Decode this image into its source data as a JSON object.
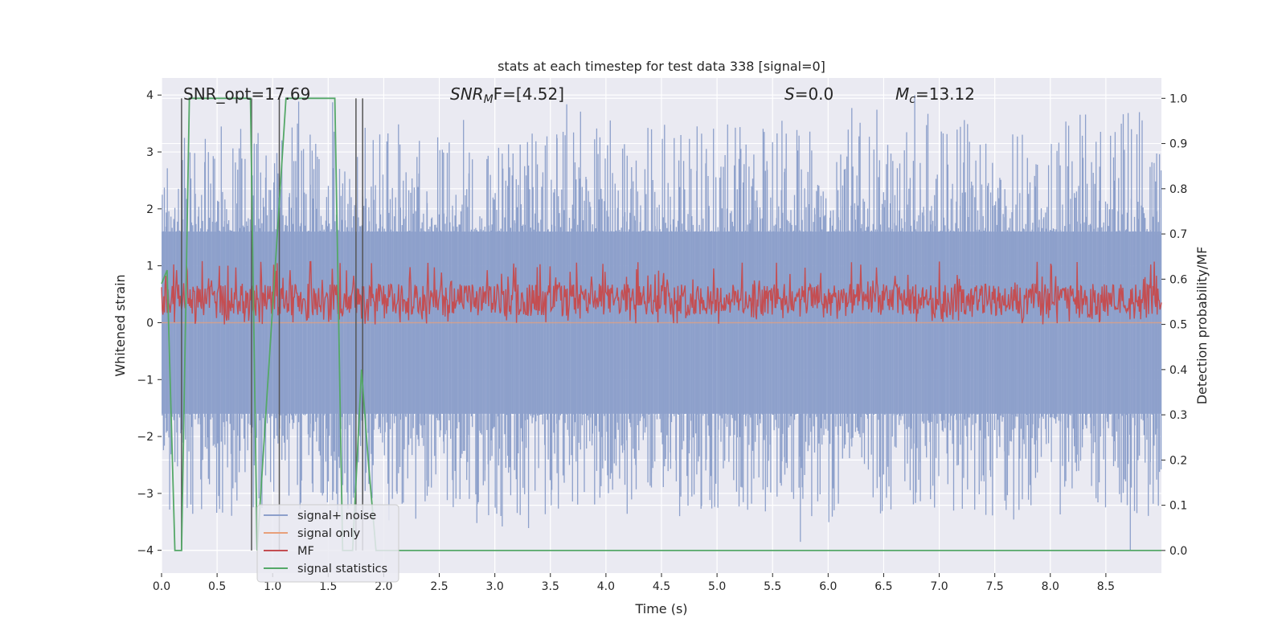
{
  "chart_data": {
    "type": "line",
    "title": "stats at each timestep for test data 338 [signal=0]",
    "xlabel": "Time (s)",
    "ylabel_left": "Whitened strain",
    "ylabel_right": "Detection probability/MF",
    "xlim": [
      0,
      9.0
    ],
    "ylim_left": [
      -4.4,
      4.3
    ],
    "ylim_right": [
      -0.05,
      1.045
    ],
    "x_ticks": [
      "0.0",
      "0.5",
      "1.0",
      "1.5",
      "2.0",
      "2.5",
      "3.0",
      "3.5",
      "4.0",
      "4.5",
      "5.0",
      "5.5",
      "6.0",
      "6.5",
      "7.0",
      "7.5",
      "8.0",
      "8.5"
    ],
    "y_ticks_left": [
      "4",
      "3",
      "2",
      "1",
      "0",
      "−1",
      "−2",
      "−3",
      "−4"
    ],
    "y_ticks_right": [
      "1.0",
      "0.9",
      "0.8",
      "0.7",
      "0.6",
      "0.5",
      "0.4",
      "0.3",
      "0.2",
      "0.1",
      "0.0"
    ],
    "grid": true,
    "legend_position": "lower-left",
    "annotations": {
      "snr_opt": "SNR_opt=17.69",
      "snr_mf_sym": "SNR",
      "snr_mf_sub": "M",
      "snr_mf_rest": "F=[4.52]",
      "s_sym": "S",
      "s_rest": "=0.0",
      "mc_sym": "M",
      "mc_sub": "c",
      "mc_rest": "=13.12"
    },
    "series": [
      {
        "name": "signal+ noise",
        "color": "#8da0cb",
        "axis": "left",
        "description_type": "noise",
        "envelope": [
          -1.6,
          1.6
        ],
        "peak_max": 4.0,
        "peak_min": -3.85
      },
      {
        "name": "signal only",
        "color": "#e8a07a",
        "axis": "left",
        "values_constant": 0.0
      },
      {
        "name": "MF",
        "color": "#c44e52",
        "axis": "right",
        "range": [
          0.5,
          0.62
        ]
      },
      {
        "name": "signal statistics",
        "color": "#55a868",
        "axis": "right",
        "x": [
          0.0,
          0.05,
          0.12,
          0.18,
          0.25,
          0.8,
          0.86,
          1.12,
          1.56,
          1.63,
          1.72,
          1.8,
          1.86,
          1.93,
          9.0
        ],
        "y": [
          0.59,
          0.62,
          0.0,
          0.0,
          1.0,
          1.0,
          0.0,
          1.0,
          1.0,
          0.0,
          0.0,
          0.4,
          0.2,
          0.0,
          0.0
        ]
      }
    ],
    "vertical_markers_x": [
      0.18,
      0.81,
      1.06,
      1.75,
      1.81
    ],
    "marker_color": "#555555"
  }
}
